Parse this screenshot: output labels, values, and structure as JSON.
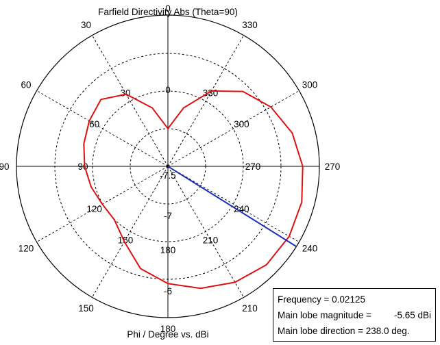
{
  "chart_data": {
    "type": "polar-line",
    "title": "Farfield Directivity Abs (Theta=90)",
    "xlabel": "Phi / Degree vs. dBi",
    "angle_direction": "counter-clockwise",
    "angle_zero": "top",
    "outer_angle_ticks": [
      "0",
      "30",
      "60",
      "90",
      "120",
      "150",
      "180",
      "210",
      "240",
      "270",
      "300",
      "330"
    ],
    "inner_angle_ticks": [
      "0",
      "30",
      "60",
      "90",
      "120",
      "150",
      "180",
      "210",
      "240",
      "270",
      "300",
      "330"
    ],
    "radial_range_dbi": [
      -7.5,
      -5.5
    ],
    "radial_tick_labels": [
      "-7.5",
      "-7",
      "-6"
    ],
    "series": [
      {
        "color": "#dd1111",
        "phi_deg": [
          0,
          15,
          30,
          45,
          60,
          75,
          90,
          105,
          120,
          135,
          150,
          165,
          180,
          195,
          210,
          225,
          240,
          255,
          270,
          285,
          300,
          315,
          330,
          345,
          360
        ],
        "dbi": [
          -7.0,
          -6.7,
          -6.4,
          -6.25,
          -6.3,
          -6.35,
          -6.4,
          -6.45,
          -6.5,
          -6.5,
          -6.35,
          -6.1,
          -5.95,
          -5.83,
          -5.73,
          -5.66,
          -5.65,
          -5.67,
          -5.72,
          -5.8,
          -5.93,
          -6.1,
          -6.35,
          -6.7,
          -7.0
        ]
      }
    ],
    "main_lobe_marker": {
      "color": "#1a2fb8",
      "phi_deg": 238.0
    }
  },
  "info": {
    "frequency": "Frequency = 0.02125",
    "magnitude_label": "Main lobe magnitude =",
    "magnitude_value": "-5.65 dBi",
    "direction": "Main lobe direction = 238.0 deg."
  }
}
